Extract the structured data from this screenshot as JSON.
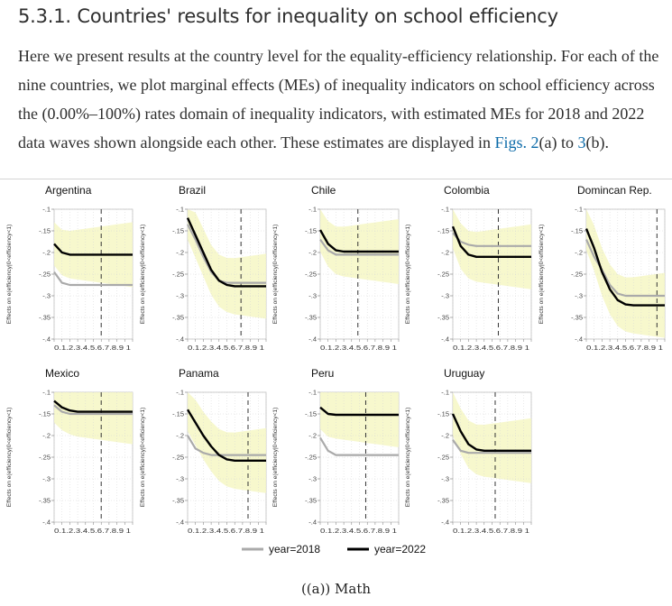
{
  "section": {
    "number": "5.3.1.",
    "title": "Countries' results for inequality on school efficiency"
  },
  "paragraph": {
    "text_before": "Here we present results at the country level for the equality-efficiency relationship. For each of the nine countries, we plot marginal effects (MEs) of inequality indicators on school efficiency across the (0.00%–100%) rates domain of inequality indicators, with estimated MEs for 2018 and 2022 data waves shown alongside each other. These estimates are displayed in ",
    "link1": "Figs. 2",
    "between": "(a) to ",
    "link2": "3",
    "after": "(b)."
  },
  "figure": {
    "caption": "((a)) Math",
    "legend": [
      {
        "label": "year=2018",
        "color": "#aaaaaa"
      },
      {
        "label": "year=2022",
        "color": "#000000"
      }
    ]
  },
  "chart_data": {
    "type": "line",
    "ylabel": "Effects on e(efficiency|0<efficiency<1)",
    "yticks": [
      "-.1",
      "-.15",
      "-.2",
      "-.25",
      "-.3",
      "-.35",
      "-.4"
    ],
    "ylim": [
      -0.4,
      -0.1
    ],
    "xticks": [
      "0",
      ".1",
      ".2",
      ".3",
      ".4",
      ".5",
      ".6",
      ".7",
      ".8",
      ".9",
      "1"
    ],
    "xtick_text": "0.1.2.3.4.5.6.7.8.9 1",
    "xlim": [
      0,
      1
    ],
    "ci_color": "#f6f7c4",
    "panels": [
      {
        "title": "Argentina",
        "vline": 0.6,
        "series": [
          {
            "name": "year=2018",
            "values": [
              -0.245,
              -0.27,
              -0.275,
              -0.275,
              -0.275,
              -0.275,
              -0.275,
              -0.275,
              -0.275,
              -0.275,
              -0.275
            ]
          },
          {
            "name": "year=2022",
            "values": [
              -0.18,
              -0.2,
              -0.205,
              -0.205,
              -0.205,
              -0.205,
              -0.205,
              -0.205,
              -0.205,
              -0.205,
              -0.205
            ]
          }
        ]
      },
      {
        "title": "Brazil",
        "vline": 0.68,
        "series": [
          {
            "name": "year=2018",
            "values": [
              -0.135,
              -0.17,
              -0.21,
              -0.245,
              -0.265,
              -0.27,
              -0.27,
              -0.27,
              -0.27,
              -0.27,
              -0.27
            ]
          },
          {
            "name": "year=2022",
            "values": [
              -0.12,
              -0.16,
              -0.2,
              -0.24,
              -0.265,
              -0.275,
              -0.278,
              -0.278,
              -0.278,
              -0.278,
              -0.278
            ]
          }
        ]
      },
      {
        "title": "Chile",
        "vline": 0.48,
        "series": [
          {
            "name": "year=2018",
            "values": [
              -0.17,
              -0.195,
              -0.205,
              -0.205,
              -0.205,
              -0.205,
              -0.205,
              -0.205,
              -0.205,
              -0.205,
              -0.205
            ]
          },
          {
            "name": "year=2022",
            "values": [
              -0.148,
              -0.18,
              -0.195,
              -0.198,
              -0.198,
              -0.198,
              -0.198,
              -0.198,
              -0.198,
              -0.198,
              -0.198
            ]
          }
        ]
      },
      {
        "title": "Colombia",
        "vline": 0.58,
        "series": [
          {
            "name": "year=2018",
            "values": [
              -0.155,
              -0.175,
              -0.182,
              -0.185,
              -0.185,
              -0.185,
              -0.185,
              -0.185,
              -0.185,
              -0.185,
              -0.185
            ]
          },
          {
            "name": "year=2022",
            "values": [
              -0.14,
              -0.185,
              -0.205,
              -0.21,
              -0.21,
              -0.21,
              -0.21,
              -0.21,
              -0.21,
              -0.21,
              -0.21
            ]
          }
        ]
      },
      {
        "title": "Domincan Rep.",
        "vline": 0.9,
        "series": [
          {
            "name": "year=2018",
            "values": [
              -0.17,
              -0.21,
              -0.24,
              -0.275,
              -0.295,
              -0.3,
              -0.3,
              -0.3,
              -0.3,
              -0.3,
              -0.3
            ]
          },
          {
            "name": "year=2022",
            "values": [
              -0.145,
              -0.19,
              -0.245,
              -0.285,
              -0.31,
              -0.32,
              -0.322,
              -0.322,
              -0.322,
              -0.322,
              -0.322
            ]
          }
        ]
      },
      {
        "title": "Mexico",
        "vline": 0.6,
        "series": [
          {
            "name": "year=2018",
            "values": [
              -0.13,
              -0.145,
              -0.15,
              -0.15,
              -0.15,
              -0.15,
              -0.15,
              -0.15,
              -0.15,
              -0.15,
              -0.15
            ]
          },
          {
            "name": "year=2022",
            "values": [
              -0.12,
              -0.135,
              -0.142,
              -0.145,
              -0.145,
              -0.145,
              -0.145,
              -0.145,
              -0.145,
              -0.145,
              -0.145
            ]
          }
        ]
      },
      {
        "title": "Panama",
        "vline": 0.77,
        "series": [
          {
            "name": "year=2018",
            "values": [
              -0.2,
              -0.23,
              -0.24,
              -0.245,
              -0.245,
              -0.245,
              -0.245,
              -0.245,
              -0.245,
              -0.245,
              -0.245
            ]
          },
          {
            "name": "year=2022",
            "values": [
              -0.14,
              -0.17,
              -0.2,
              -0.225,
              -0.245,
              -0.255,
              -0.258,
              -0.258,
              -0.258,
              -0.258,
              -0.258
            ]
          }
        ]
      },
      {
        "title": "Peru",
        "vline": 0.58,
        "series": [
          {
            "name": "year=2018",
            "values": [
              -0.205,
              -0.235,
              -0.245,
              -0.245,
              -0.245,
              -0.245,
              -0.245,
              -0.245,
              -0.245,
              -0.245,
              -0.245
            ]
          },
          {
            "name": "year=2022",
            "values": [
              -0.135,
              -0.15,
              -0.152,
              -0.152,
              -0.152,
              -0.152,
              -0.152,
              -0.152,
              -0.152,
              -0.152,
              -0.152
            ]
          }
        ]
      },
      {
        "title": "Uruguay",
        "vline": 0.54,
        "series": [
          {
            "name": "year=2018",
            "values": [
              -0.21,
              -0.235,
              -0.24,
              -0.24,
              -0.24,
              -0.24,
              -0.24,
              -0.24,
              -0.24,
              -0.24,
              -0.24
            ]
          },
          {
            "name": "year=2022",
            "values": [
              -0.15,
              -0.19,
              -0.22,
              -0.232,
              -0.235,
              -0.235,
              -0.235,
              -0.235,
              -0.235,
              -0.235,
              -0.235
            ]
          }
        ]
      }
    ]
  }
}
